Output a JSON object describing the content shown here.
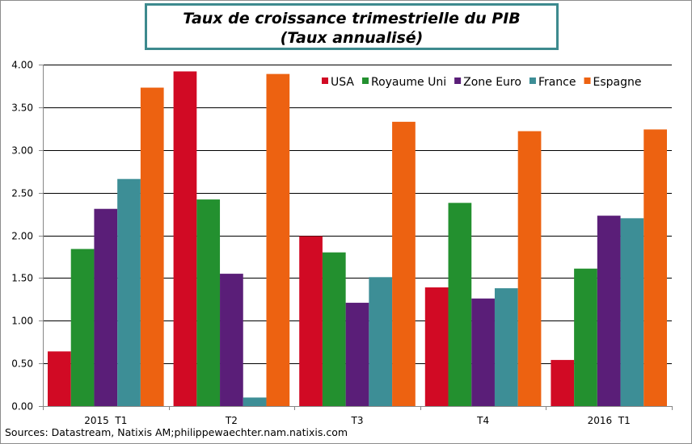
{
  "chart_data": {
    "type": "bar",
    "title": "Taux de croissance trimestrielle du PIB",
    "subtitle": "(Taux annualisé)",
    "categories": [
      "2015  T1",
      "T2",
      "T3",
      "T4",
      "2016  T1"
    ],
    "series": [
      {
        "name": "USA",
        "color": "#d10a24",
        "values": [
          0.64,
          3.92,
          1.99,
          1.39,
          0.54
        ]
      },
      {
        "name": "Royaume Uni",
        "color": "#23902f",
        "values": [
          1.84,
          2.42,
          1.8,
          2.38,
          1.61
        ]
      },
      {
        "name": "Zone Euro",
        "color": "#5a1e78",
        "values": [
          2.31,
          1.55,
          1.21,
          1.26,
          2.23
        ]
      },
      {
        "name": "France",
        "color": "#3d8e96",
        "values": [
          2.66,
          0.1,
          1.51,
          1.38,
          2.2
        ]
      },
      {
        "name": "Espagne",
        "color": "#ed6211",
        "values": [
          3.73,
          3.89,
          3.33,
          3.22,
          3.24
        ]
      }
    ],
    "ylim": [
      0,
      4
    ],
    "yticks": [
      "0.00",
      "0.50",
      "1.00",
      "1.50",
      "2.00",
      "2.50",
      "3.00",
      "3.50",
      "4.00"
    ],
    "grid": true,
    "legend": "top-right",
    "xlabel": "",
    "ylabel": ""
  },
  "source": "Sources: Datastream, Natixis AM;philippewaechter.nam.natixis.com"
}
